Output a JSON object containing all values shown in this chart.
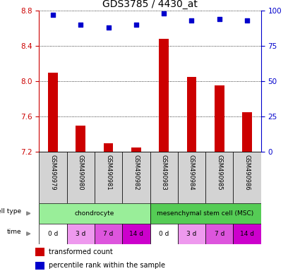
{
  "title": "GDS3785 / 4430_at",
  "samples": [
    "GSM490979",
    "GSM490980",
    "GSM490981",
    "GSM490982",
    "GSM490983",
    "GSM490984",
    "GSM490985",
    "GSM490986"
  ],
  "bar_values": [
    8.1,
    7.5,
    7.3,
    7.25,
    8.48,
    8.05,
    7.95,
    7.65
  ],
  "percentile_values": [
    97,
    90,
    88,
    90,
    98,
    93,
    94,
    93
  ],
  "ylim_left": [
    7.2,
    8.8
  ],
  "ylim_right": [
    0,
    100
  ],
  "yticks_left": [
    7.2,
    7.6,
    8.0,
    8.4,
    8.8
  ],
  "yticks_right": [
    0,
    25,
    50,
    75,
    100
  ],
  "bar_color": "#cc0000",
  "dot_color": "#0000cc",
  "cell_types": [
    {
      "label": "chondrocyte",
      "start": 0,
      "end": 4,
      "color": "#99ee99"
    },
    {
      "label": "mesenchymal stem cell (MSC)",
      "start": 4,
      "end": 8,
      "color": "#55cc55"
    }
  ],
  "time_labels": [
    "0 d",
    "3 d",
    "7 d",
    "14 d",
    "0 d",
    "3 d",
    "7 d",
    "14 d"
  ],
  "time_colors": [
    "#ffffff",
    "#ee99ee",
    "#dd55dd",
    "#cc00cc",
    "#ffffff",
    "#ee99ee",
    "#dd55dd",
    "#cc00cc"
  ],
  "sample_box_color": "#d3d3d3",
  "legend_bar_label": "transformed count",
  "legend_dot_label": "percentile rank within the sample",
  "tick_color_left": "#cc0000",
  "tick_color_right": "#0000cc",
  "bar_width": 0.35
}
